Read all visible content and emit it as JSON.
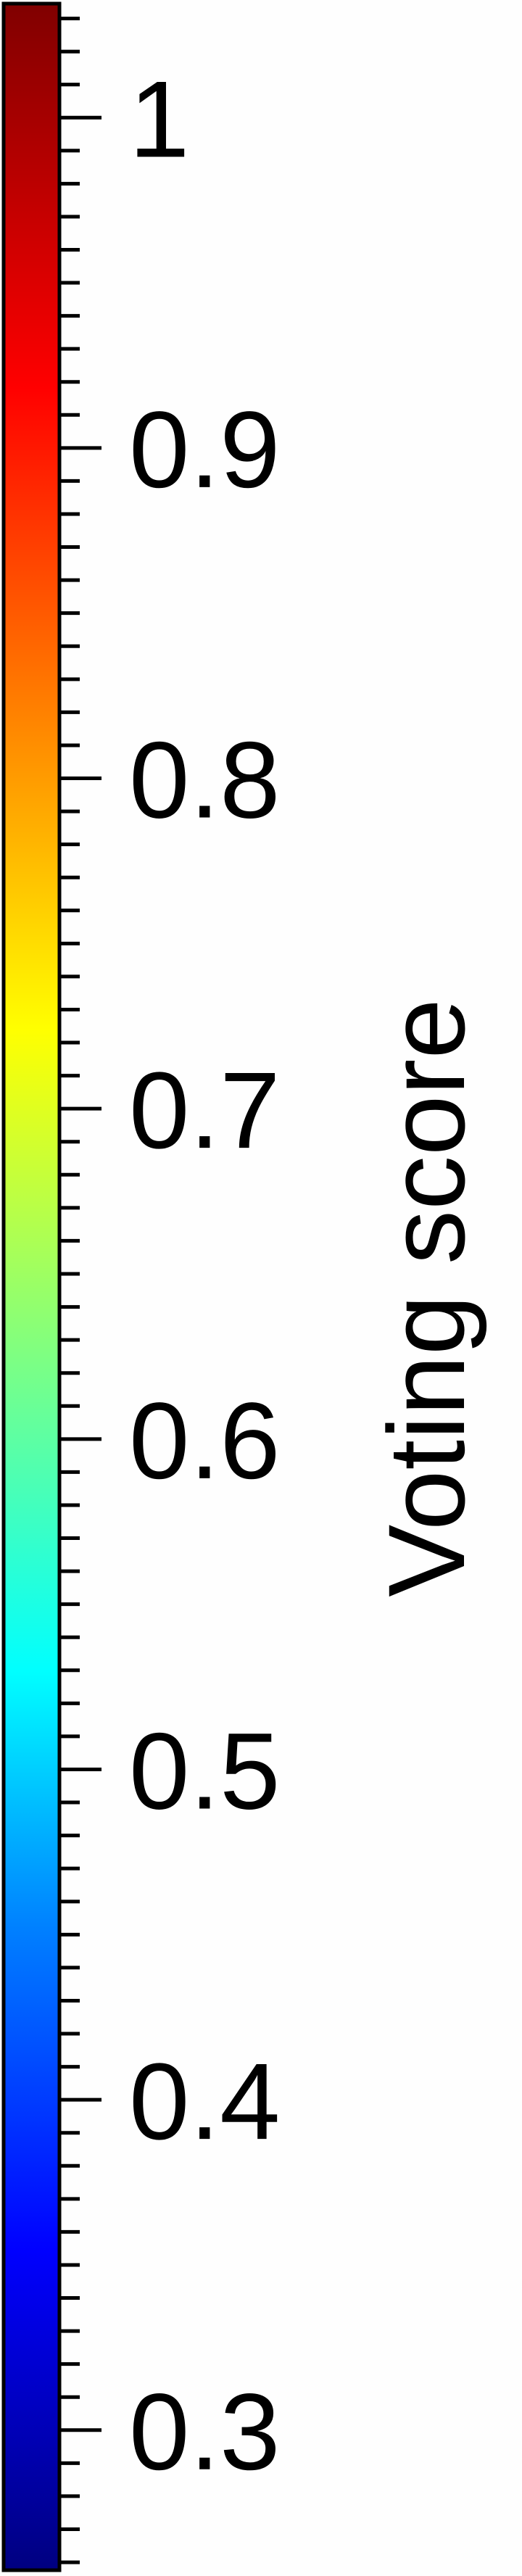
{
  "chart_data": {
    "type": "colorbar",
    "orientation": "vertical",
    "colormap": "jet",
    "ylabel": "Voting score",
    "ylim": [
      0.2576,
      1.0345
    ],
    "major_ticks": [
      0.3,
      0.4,
      0.5,
      0.6,
      0.7,
      0.8,
      0.9,
      1.0
    ],
    "tick_labels": [
      "0.3",
      "0.4",
      "0.5",
      "0.6",
      "0.7",
      "0.8",
      "0.9",
      "1"
    ],
    "minor_tick_step": 0.01,
    "colors": [
      {
        "value": 0.2576,
        "color": "#000080"
      },
      {
        "value": 0.3547,
        "color": "#0000ff"
      },
      {
        "value": 0.4518,
        "color": "#0080ff"
      },
      {
        "value": 0.5296,
        "color": "#00ffff"
      },
      {
        "value": 0.6267,
        "color": "#80ff80"
      },
      {
        "value": 0.7239,
        "color": "#ffff00"
      },
      {
        "value": 0.821,
        "color": "#ff8000"
      },
      {
        "value": 0.9181,
        "color": "#ff0000"
      },
      {
        "value": 1.0345,
        "color": "#800000"
      }
    ]
  }
}
